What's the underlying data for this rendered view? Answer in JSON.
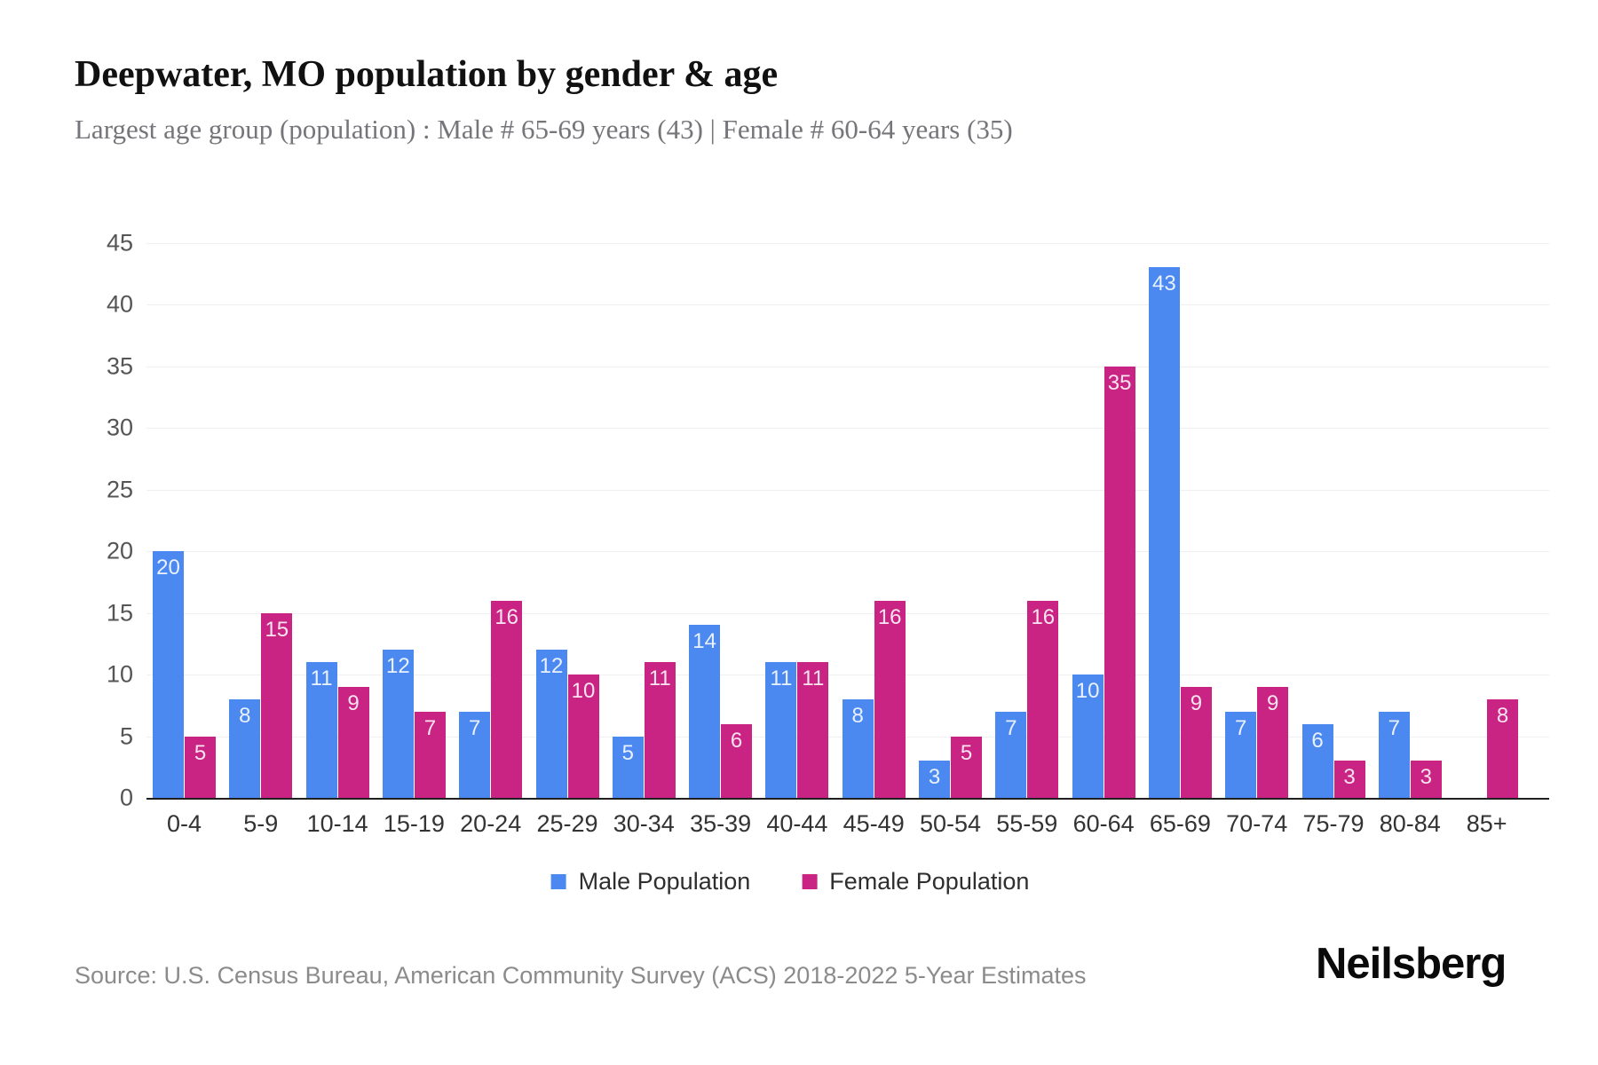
{
  "header": {
    "title": "Deepwater, MO population by gender & age",
    "subtitle": "Largest age group (population) : Male # 65-69 years (43) | Female # 60-64 years (35)"
  },
  "chart_data": {
    "type": "bar",
    "title": "Deepwater, MO population by gender & age",
    "categories": [
      "0-4",
      "5-9",
      "10-14",
      "15-19",
      "20-24",
      "25-29",
      "30-34",
      "35-39",
      "40-44",
      "45-49",
      "50-54",
      "55-59",
      "60-64",
      "65-69",
      "70-74",
      "75-79",
      "80-84",
      "85+"
    ],
    "series": [
      {
        "name": "Male Population",
        "color": "#4b89f1",
        "values": [
          20,
          8,
          11,
          12,
          7,
          12,
          5,
          14,
          11,
          8,
          3,
          7,
          10,
          43,
          7,
          6,
          7,
          0
        ]
      },
      {
        "name": "Female Population",
        "color": "#c92383",
        "values": [
          5,
          15,
          9,
          7,
          16,
          10,
          11,
          6,
          11,
          16,
          5,
          16,
          35,
          9,
          9,
          3,
          3,
          8
        ]
      }
    ],
    "xlabel": "",
    "ylabel": "",
    "ylim": [
      0,
      45
    ],
    "yticks": [
      0,
      5,
      10,
      15,
      20,
      25,
      30,
      35,
      40,
      45
    ],
    "grid": true,
    "bar_value_labels": "inside-top",
    "legend_position": "bottom"
  },
  "footer": {
    "source": "Source: U.S. Census Bureau, American Community Survey (ACS) 2018-2022 5-Year Estimates",
    "brand": "Neilsberg"
  }
}
